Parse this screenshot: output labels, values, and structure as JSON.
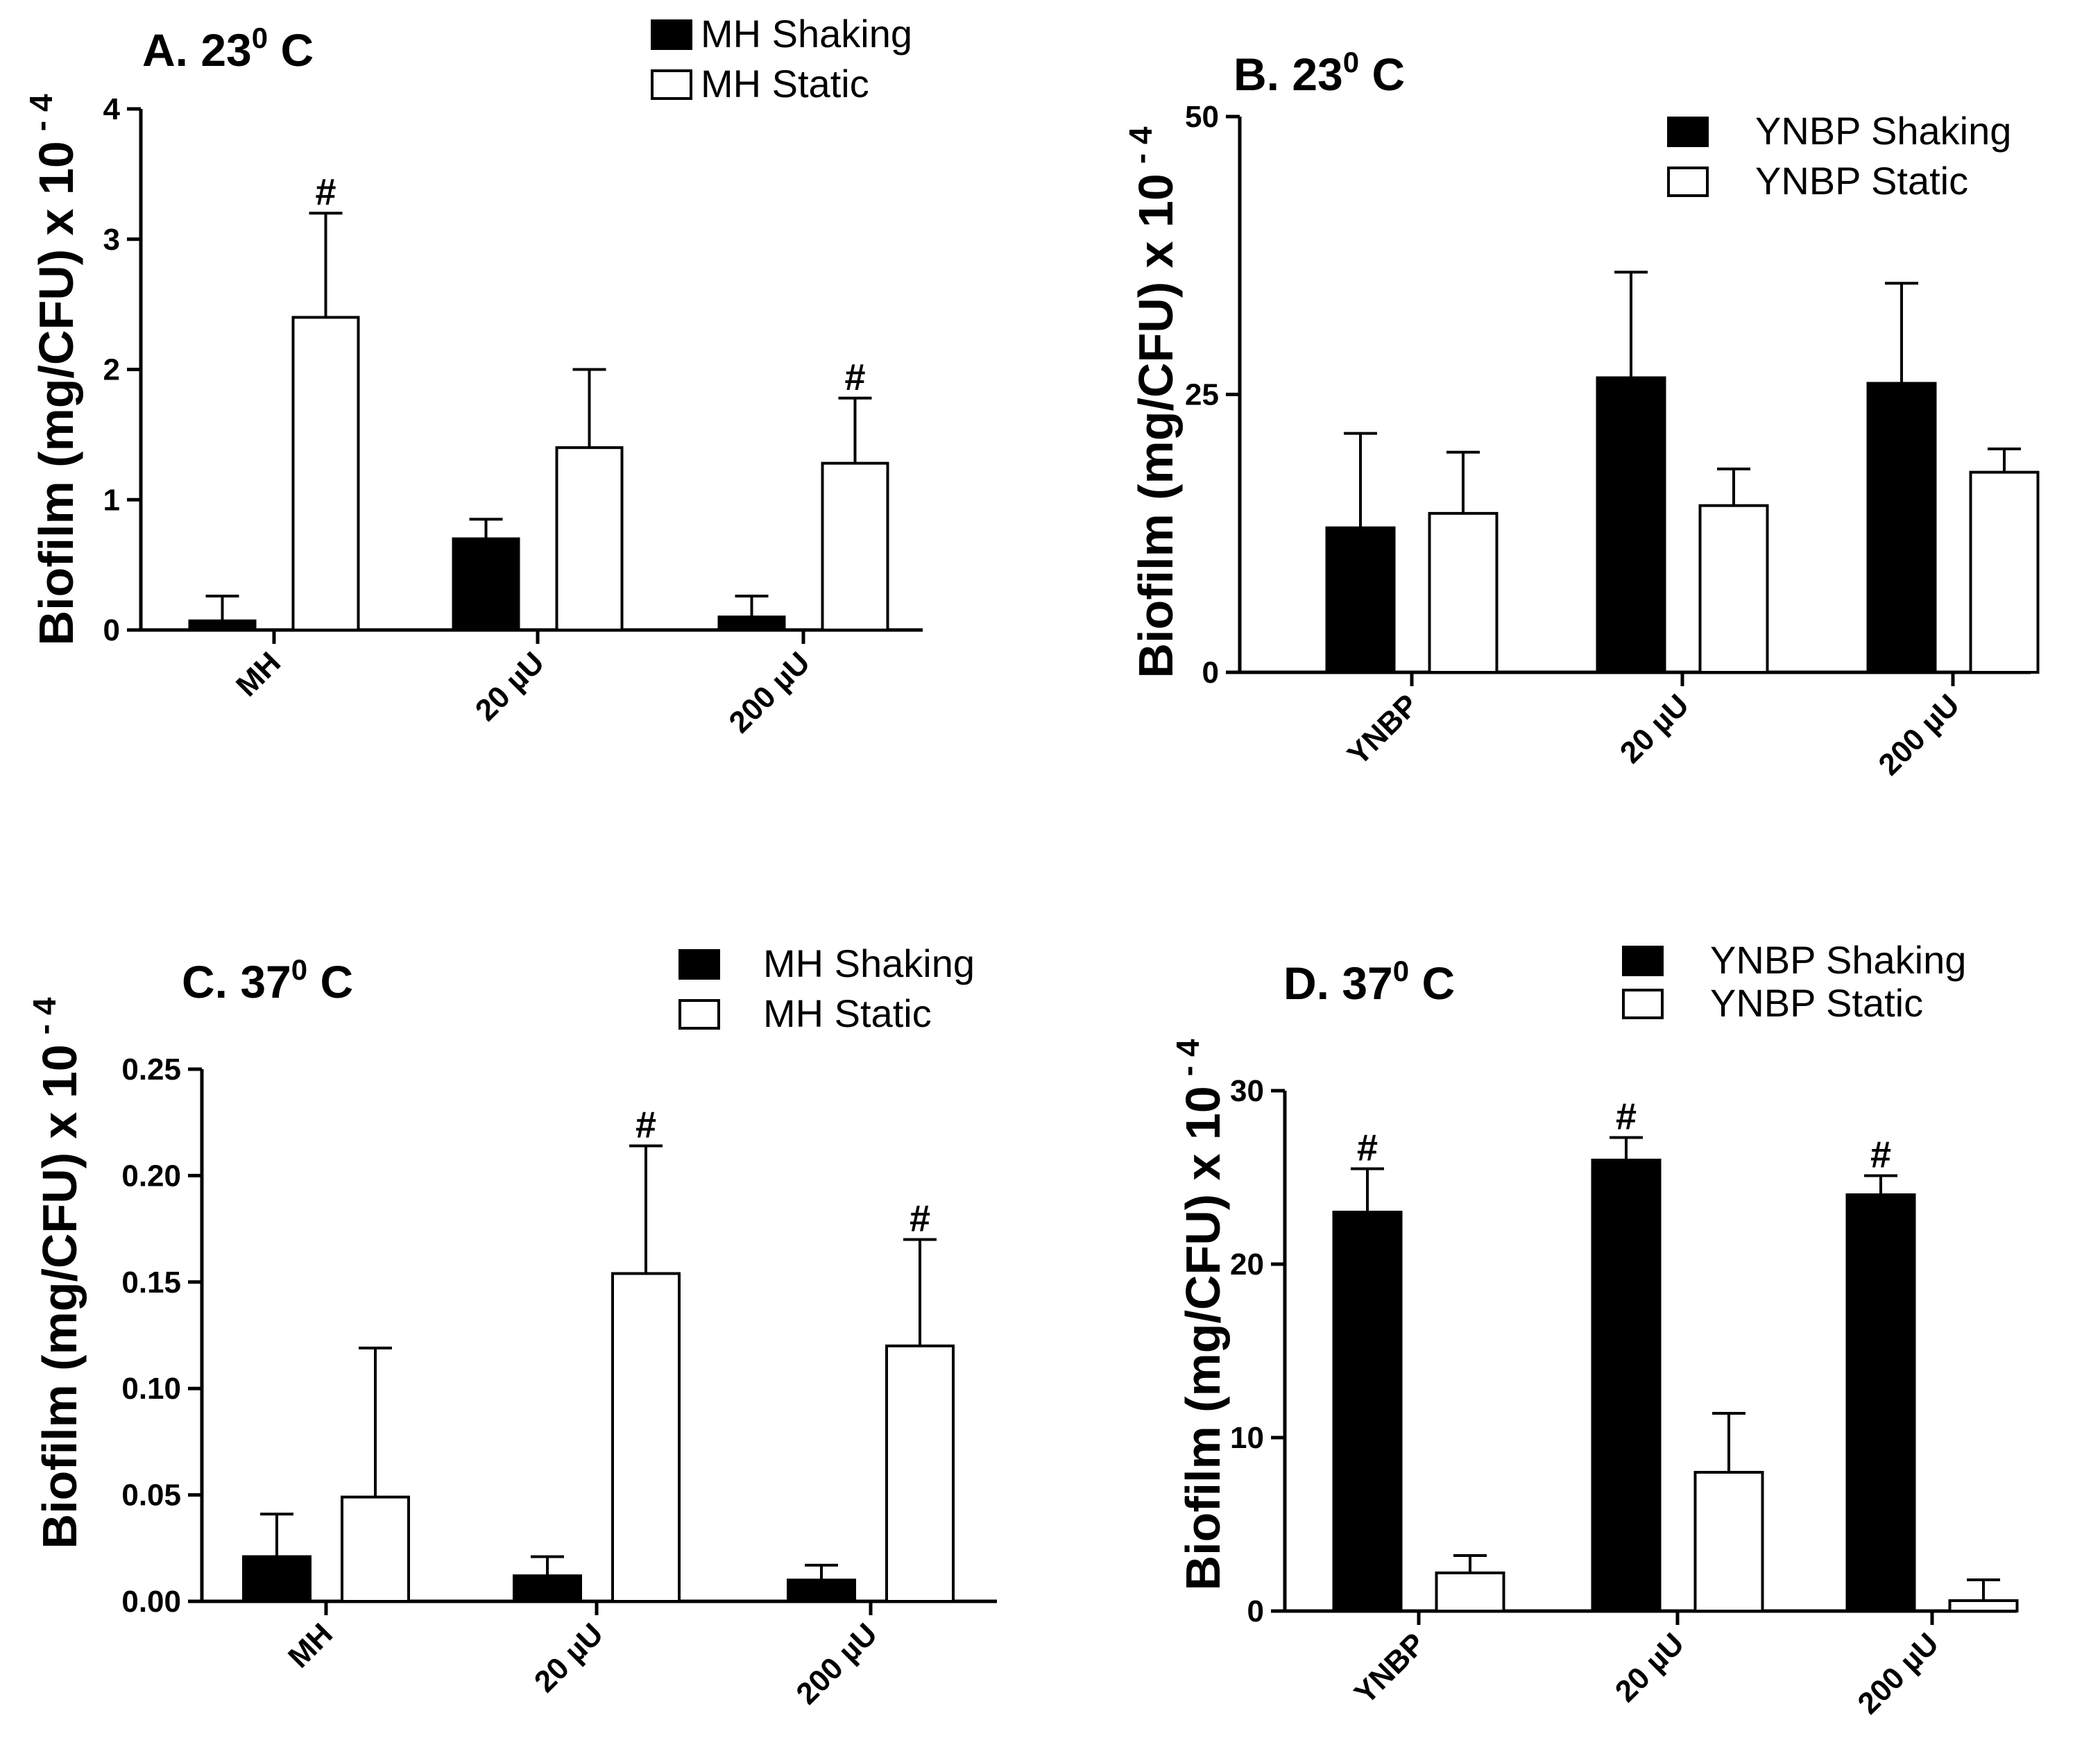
{
  "chart_data": [
    {
      "type": "bar",
      "title": "A.  23",
      "title_sup": "0",
      "title_unit": " C",
      "ylabel": "Biofilm (mg/CFU) x 10",
      "ylabel_sup": "- 4",
      "ylim": [
        0,
        4
      ],
      "yticks": [
        "0",
        "1",
        "2",
        "3",
        "4"
      ],
      "yticks_values": [
        0,
        1,
        2,
        3,
        4
      ],
      "categories": [
        "MH",
        "20 µU",
        "200 µU"
      ],
      "series": [
        {
          "name": "MH Shaking",
          "fill": "#000000",
          "values": [
            0.07,
            0.7,
            0.1
          ],
          "errors": [
            0.19,
            0.15,
            0.16
          ],
          "marks": [
            "",
            "",
            ""
          ]
        },
        {
          "name": "MH Static",
          "fill": "#ffffff",
          "values": [
            2.4,
            1.4,
            1.28
          ],
          "errors": [
            0.8,
            0.6,
            0.5
          ],
          "marks": [
            "#",
            "",
            "#"
          ]
        }
      ],
      "legend": "top-right",
      "grid": false
    },
    {
      "type": "bar",
      "title": "B. 23",
      "title_sup": "0",
      "title_unit": " C",
      "ylabel": "Biofilm (mg/CFU) x 10",
      "ylabel_sup": "- 4",
      "ylim": [
        0,
        50
      ],
      "yticks": [
        "0",
        "25",
        "50"
      ],
      "yticks_values": [
        0,
        25,
        50
      ],
      "categories": [
        "YNBP",
        "20 µU",
        "200 µU"
      ],
      "series": [
        {
          "name": "YNBP Shaking",
          "fill": "#000000",
          "values": [
            13.0,
            26.5,
            26.0
          ],
          "errors": [
            8.5,
            9.5,
            9.0
          ],
          "marks": [
            "",
            "",
            ""
          ]
        },
        {
          "name": "YNBP Static",
          "fill": "#ffffff",
          "values": [
            14.3,
            15.0,
            18.0
          ],
          "errors": [
            5.5,
            3.3,
            2.1
          ],
          "marks": [
            "",
            "",
            ""
          ]
        }
      ],
      "legend": "top-right",
      "grid": false
    },
    {
      "type": "bar",
      "title": "C. 37",
      "title_sup": "0",
      "title_unit": " C",
      "ylabel": "Biofilm (mg/CFU) x 10",
      "ylabel_sup": "- 4",
      "ylim": [
        0,
        0.25
      ],
      "yticks": [
        "0.00",
        "0.05",
        "0.10",
        "0.15",
        "0.20",
        "0.25"
      ],
      "yticks_values": [
        0,
        0.05,
        0.1,
        0.15,
        0.2,
        0.25
      ],
      "categories": [
        "MH",
        "20 µU",
        "200 µU"
      ],
      "series": [
        {
          "name": "MH Shaking",
          "fill": "#000000",
          "values": [
            0.021,
            0.012,
            0.01
          ],
          "errors": [
            0.02,
            0.009,
            0.007
          ],
          "marks": [
            "",
            "",
            ""
          ]
        },
        {
          "name": "MH Static",
          "fill": "#ffffff",
          "values": [
            0.049,
            0.154,
            0.12
          ],
          "errors": [
            0.07,
            0.06,
            0.05
          ],
          "marks": [
            "",
            "#",
            "#"
          ]
        }
      ],
      "legend": "top-right",
      "grid": false
    },
    {
      "type": "bar",
      "title": "D. 37",
      "title_sup": "0",
      "title_unit": " C",
      "ylabel": "Biofilm (mg/CFU) x 10",
      "ylabel_sup": "- 4",
      "ylim": [
        0,
        30
      ],
      "yticks": [
        "0",
        "10",
        "20",
        "30"
      ],
      "yticks_values": [
        0,
        10,
        20,
        30
      ],
      "categories": [
        "YNBP",
        "20 µU",
        "200 µU"
      ],
      "series": [
        {
          "name": "YNBP Shaking",
          "fill": "#000000",
          "values": [
            23.0,
            26.0,
            24.0
          ],
          "errors": [
            2.5,
            1.3,
            1.1
          ],
          "marks": [
            "#",
            "#",
            "#"
          ]
        },
        {
          "name": "YNBP Static",
          "fill": "#ffffff",
          "values": [
            2.2,
            8.0,
            0.6
          ],
          "errors": [
            1.0,
            3.4,
            1.2
          ],
          "marks": [
            "",
            "",
            ""
          ]
        }
      ],
      "legend": "top-right",
      "grid": false
    }
  ]
}
